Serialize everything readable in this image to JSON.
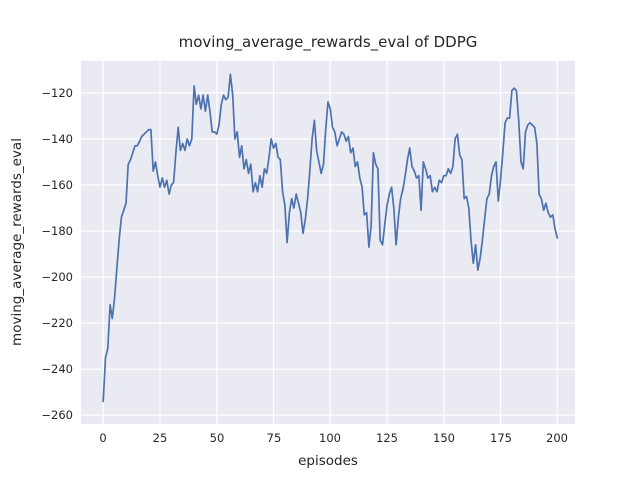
{
  "figure": {
    "title": "moving_average_rewards_eval of DDPG",
    "background_color": "#ffffff",
    "plot_background_color": "#eaeaf2",
    "grid_color": "#ffffff",
    "line_color": "#4c72b0",
    "text_color": "#262626"
  },
  "chart_data": {
    "type": "line",
    "title": "moving_average_rewards_eval of DDPG",
    "xlabel": "episodes",
    "ylabel": "moving_average_rewards_eval",
    "legend": null,
    "grid": true,
    "x_start": 0,
    "x_step": 1,
    "xticks": [
      0,
      25,
      50,
      75,
      100,
      125,
      150,
      175,
      200
    ],
    "yticks": [
      -120,
      -140,
      -160,
      -180,
      -200,
      -220,
      -240,
      -260
    ],
    "xlim": [
      -9.8,
      207.8
    ],
    "ylim": [
      -263.8,
      -106.2
    ],
    "values": [
      -254,
      -235,
      -231,
      -212,
      -218,
      -209,
      -196,
      -184,
      -174,
      -171,
      -168,
      -151,
      -149,
      -146,
      -143,
      -143,
      -141,
      -139,
      -138,
      -137,
      -136,
      -136,
      -154,
      -150,
      -156,
      -161,
      -157,
      -161,
      -158,
      -164,
      -160,
      -159,
      -146,
      -135,
      -145,
      -142,
      -145,
      -140,
      -143,
      -140,
      -117,
      -125,
      -121,
      -127,
      -121,
      -128,
      -121,
      -128,
      -137,
      -137,
      -138,
      -134,
      -125,
      -121,
      -123,
      -122,
      -112,
      -121,
      -140,
      -137,
      -148,
      -143,
      -153,
      -149,
      -155,
      -151,
      -163,
      -159,
      -163,
      -156,
      -161,
      -153,
      -155,
      -148,
      -140,
      -144,
      -142,
      -148,
      -149,
      -163,
      -169,
      -185,
      -172,
      -166,
      -170,
      -164,
      -168,
      -172,
      -181,
      -175,
      -166,
      -154,
      -140,
      -132,
      -145,
      -150,
      -155,
      -151,
      -136,
      -124,
      -127,
      -135,
      -137,
      -143,
      -140,
      -137,
      -138,
      -141,
      -139,
      -146,
      -144,
      -152,
      -150,
      -157,
      -161,
      -173,
      -172,
      -187,
      -178,
      -146,
      -151,
      -153,
      -184,
      -186,
      -177,
      -169,
      -164,
      -161,
      -170,
      -186,
      -174,
      -166,
      -162,
      -156,
      -149,
      -144,
      -152,
      -154,
      -157,
      -156,
      -171,
      -150,
      -153,
      -157,
      -156,
      -163,
      -161,
      -163,
      -158,
      -159,
      -156,
      -156,
      -153,
      -155,
      -152,
      -140,
      -138,
      -147,
      -149,
      -166,
      -165,
      -170,
      -184,
      -194,
      -186,
      -197,
      -192,
      -184,
      -175,
      -166,
      -164,
      -156,
      -152,
      -150,
      -167,
      -158,
      -146,
      -133,
      -131,
      -131,
      -119,
      -118,
      -119,
      -132,
      -150,
      -153,
      -137,
      -134,
      -133,
      -134,
      -135,
      -142,
      -164,
      -166,
      -171,
      -168,
      -172,
      -174,
      -173,
      -179,
      -183
    ]
  }
}
